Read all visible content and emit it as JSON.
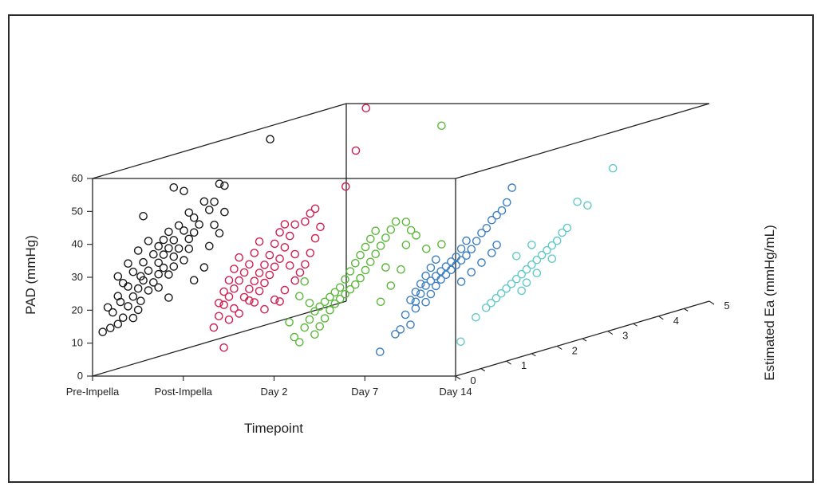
{
  "chart_data": {
    "type": "scatter",
    "projection": "3d",
    "xlabel": "Timepoint",
    "ylabel": "PAD (mmHg)",
    "zlabel": "Estimated Ea (mmHg/mL)",
    "categories": [
      "Pre-Impella",
      "Post-Impella",
      "Day 2",
      "Day 7",
      "Day 14"
    ],
    "ylim": [
      0,
      60
    ],
    "yticks": [
      "0",
      "10",
      "20",
      "30",
      "40",
      "50",
      "60"
    ],
    "zlim": [
      0,
      5
    ],
    "zticks": [
      "0",
      "1",
      "2",
      "3",
      "4",
      "5"
    ],
    "grid": false,
    "legend": "none",
    "series": [
      {
        "category": "Pre-Impella",
        "color": "#1a1a1a",
        "points": [
          [
            12.5,
            0.2
          ],
          [
            13,
            0.35
          ],
          [
            13.5,
            0.5
          ],
          [
            14,
            0.8
          ],
          [
            15,
            0.6
          ],
          [
            16,
            0.9
          ],
          [
            17.5,
            0.4
          ],
          [
            18,
            0.7
          ],
          [
            18.5,
            0.95
          ],
          [
            19.5,
            0.3
          ],
          [
            20,
            0.55
          ],
          [
            20.5,
            0.8
          ],
          [
            21,
            1.1
          ],
          [
            22,
            0.5
          ],
          [
            22.5,
            0.9
          ],
          [
            23,
            1.2
          ],
          [
            24,
            0.7
          ],
          [
            24.5,
            1.0
          ],
          [
            25,
            1.3
          ],
          [
            25.5,
            0.6
          ],
          [
            26,
            0.95
          ],
          [
            26.5,
            1.4
          ],
          [
            27,
            1.1
          ],
          [
            28,
            0.8
          ],
          [
            28.5,
            1.3
          ],
          [
            29,
            1.6
          ],
          [
            30,
            1.0
          ],
          [
            30.5,
            1.4
          ],
          [
            31,
            1.7
          ],
          [
            31.5,
            1.2
          ],
          [
            32,
            1.5
          ],
          [
            33,
            1.9
          ],
          [
            33.5,
            1.3
          ],
          [
            34,
            1.6
          ],
          [
            34.5,
            2.0
          ],
          [
            35,
            1.4
          ],
          [
            36,
            1.8
          ],
          [
            36.5,
            2.1
          ],
          [
            37,
            1.5
          ],
          [
            38,
            1.7
          ],
          [
            39,
            2.0
          ],
          [
            40,
            2.3
          ],
          [
            41,
            1.9
          ],
          [
            42,
            2.4
          ],
          [
            43,
            2.2
          ],
          [
            44,
            1.0
          ],
          [
            46,
            2.6
          ],
          [
            47,
            2.5
          ],
          [
            48,
            1.8
          ],
          [
            50,
            1.6
          ],
          [
            56,
            3.5
          ],
          [
            20,
            2.0
          ],
          [
            23,
            2.2
          ],
          [
            26,
            1.6
          ],
          [
            29,
            2.3
          ],
          [
            32,
            2.5
          ],
          [
            35,
            2.4
          ],
          [
            38,
            2.6
          ],
          [
            28,
            0.5
          ],
          [
            31,
            0.7
          ],
          [
            34,
            0.9
          ],
          [
            36,
            1.1
          ],
          [
            30,
            1.9
          ],
          [
            27,
            1.8
          ],
          [
            24,
            1.5
          ],
          [
            21,
            1.3
          ],
          [
            17,
            1.5
          ]
        ]
      },
      {
        "category": "Post-Impella",
        "color": "#d02050",
        "points": [
          [
            5,
            0.8
          ],
          [
            12,
            0.6
          ],
          [
            13,
            0.9
          ],
          [
            14,
            1.1
          ],
          [
            15,
            0.7
          ],
          [
            16,
            1.0
          ],
          [
            17,
            1.3
          ],
          [
            18,
            0.8
          ],
          [
            18.5,
            1.2
          ],
          [
            19,
            1.5
          ],
          [
            20,
            0.9
          ],
          [
            20.5,
            1.3
          ],
          [
            21,
            1.6
          ],
          [
            22,
            1.0
          ],
          [
            22.5,
            1.4
          ],
          [
            23,
            1.7
          ],
          [
            24,
            1.1
          ],
          [
            24.5,
            1.5
          ],
          [
            25,
            1.8
          ],
          [
            26,
            1.2
          ],
          [
            26.5,
            1.6
          ],
          [
            27,
            1.9
          ],
          [
            28,
            1.3
          ],
          [
            29,
            1.7
          ],
          [
            30,
            2.0
          ],
          [
            31,
            1.4
          ],
          [
            32,
            1.8
          ],
          [
            33,
            2.1
          ],
          [
            34,
            1.5
          ],
          [
            35,
            1.9
          ],
          [
            36,
            2.2
          ],
          [
            37,
            2.0
          ],
          [
            38,
            2.5
          ],
          [
            39,
            2.6
          ],
          [
            43,
            3.2
          ],
          [
            53,
            3.4
          ],
          [
            65,
            3.6
          ],
          [
            14,
            1.9
          ],
          [
            17,
            2.0
          ],
          [
            19,
            2.2
          ],
          [
            21,
            2.3
          ],
          [
            23,
            2.4
          ],
          [
            26,
            2.5
          ],
          [
            30,
            2.6
          ],
          [
            33,
            2.7
          ],
          [
            13,
            1.6
          ],
          [
            15,
            1.8
          ],
          [
            16,
            1.4
          ],
          [
            19,
            0.7
          ],
          [
            22,
            0.8
          ],
          [
            25,
            0.9
          ],
          [
            28,
            1.0
          ],
          [
            31,
            1.1
          ],
          [
            27,
            2.2
          ],
          [
            24,
            2.1
          ],
          [
            36,
            2.4
          ]
        ]
      },
      {
        "category": "Day 2",
        "color": "#5cb83c",
        "points": [
          [
            8,
            0.5
          ],
          [
            9,
            0.8
          ],
          [
            10,
            0.4
          ],
          [
            11,
            0.9
          ],
          [
            12,
            0.6
          ],
          [
            13,
            1.0
          ],
          [
            14,
            0.7
          ],
          [
            15,
            1.1
          ],
          [
            16,
            0.8
          ],
          [
            16.5,
            1.2
          ],
          [
            17,
            0.9
          ],
          [
            17.5,
            1.3
          ],
          [
            18,
            1.0
          ],
          [
            18.5,
            1.4
          ],
          [
            19,
            1.1
          ],
          [
            19.5,
            1.5
          ],
          [
            20,
            1.2
          ],
          [
            20.5,
            1.6
          ],
          [
            21,
            1.3
          ],
          [
            22,
            1.7
          ],
          [
            23,
            1.4
          ],
          [
            24,
            1.8
          ],
          [
            25,
            1.5
          ],
          [
            26,
            1.9
          ],
          [
            27,
            1.6
          ],
          [
            28,
            2.0
          ],
          [
            29,
            1.7
          ],
          [
            30,
            2.1
          ],
          [
            31,
            1.8
          ],
          [
            32,
            2.2
          ],
          [
            33,
            1.9
          ],
          [
            34,
            2.3
          ],
          [
            35,
            2.0
          ],
          [
            36,
            2.4
          ],
          [
            25,
            3.0
          ],
          [
            25,
            3.3
          ],
          [
            35,
            2.6
          ],
          [
            30,
            2.8
          ],
          [
            61,
            3.3
          ],
          [
            21,
            2.5
          ],
          [
            17,
            2.3
          ],
          [
            13,
            2.1
          ],
          [
            28,
            2.6
          ],
          [
            23,
            2.2
          ],
          [
            32,
            2.7
          ],
          [
            26,
            0.6
          ],
          [
            22,
            0.5
          ],
          [
            19,
            0.7
          ],
          [
            15,
            0.3
          ]
        ]
      },
      {
        "category": "Day 7",
        "color": "#3e7fc2",
        "points": [
          [
            6,
            0.3
          ],
          [
            10,
            0.6
          ],
          [
            11,
            0.7
          ],
          [
            11.5,
            0.9
          ],
          [
            15,
            0.8
          ],
          [
            16,
            1.0
          ],
          [
            17,
            1.2
          ],
          [
            18,
            1.0
          ],
          [
            19,
            1.3
          ],
          [
            20,
            1.1
          ],
          [
            21,
            1.4
          ],
          [
            22,
            1.2
          ],
          [
            22.5,
            1.5
          ],
          [
            23,
            1.3
          ],
          [
            23.5,
            1.6
          ],
          [
            24,
            1.4
          ],
          [
            24.5,
            1.7
          ],
          [
            25,
            1.5
          ],
          [
            25.5,
            1.8
          ],
          [
            26,
            1.6
          ],
          [
            26.5,
            1.9
          ],
          [
            27,
            1.7
          ],
          [
            27.5,
            2.0
          ],
          [
            28,
            1.8
          ],
          [
            29,
            2.1
          ],
          [
            30,
            1.9
          ],
          [
            31,
            2.2
          ],
          [
            32,
            2.0
          ],
          [
            33,
            2.3
          ],
          [
            34,
            2.4
          ],
          [
            36,
            2.5
          ],
          [
            37,
            2.6
          ],
          [
            38,
            2.7
          ],
          [
            40,
            2.8
          ],
          [
            44,
            2.9
          ],
          [
            20,
            1.9
          ],
          [
            22,
            2.1
          ],
          [
            24,
            2.3
          ],
          [
            26,
            2.5
          ],
          [
            28,
            2.6
          ],
          [
            19,
            0.9
          ],
          [
            21,
            1.0
          ],
          [
            23,
            1.1
          ],
          [
            25,
            1.2
          ],
          [
            27,
            1.3
          ],
          [
            29,
            1.4
          ]
        ]
      },
      {
        "category": "Day 14",
        "color": "#62c9c9",
        "points": [
          [
            10,
            0.1
          ],
          [
            16,
            0.4
          ],
          [
            18,
            0.6
          ],
          [
            19,
            0.7
          ],
          [
            20,
            0.8
          ],
          [
            21,
            0.9
          ],
          [
            22,
            1.0
          ],
          [
            23,
            1.1
          ],
          [
            24,
            1.2
          ],
          [
            25,
            1.3
          ],
          [
            26,
            1.4
          ],
          [
            27,
            1.5
          ],
          [
            28,
            1.6
          ],
          [
            29,
            1.7
          ],
          [
            30,
            1.8
          ],
          [
            31,
            1.9
          ],
          [
            32,
            2.0
          ],
          [
            34,
            2.1
          ],
          [
            35,
            2.2
          ],
          [
            40,
            2.6
          ],
          [
            42,
            2.4
          ],
          [
            49,
            3.1
          ],
          [
            20,
            1.3
          ],
          [
            22,
            1.4
          ],
          [
            24,
            1.6
          ],
          [
            27,
            1.9
          ],
          [
            33,
            1.5
          ],
          [
            31,
            1.2
          ]
        ]
      }
    ]
  }
}
